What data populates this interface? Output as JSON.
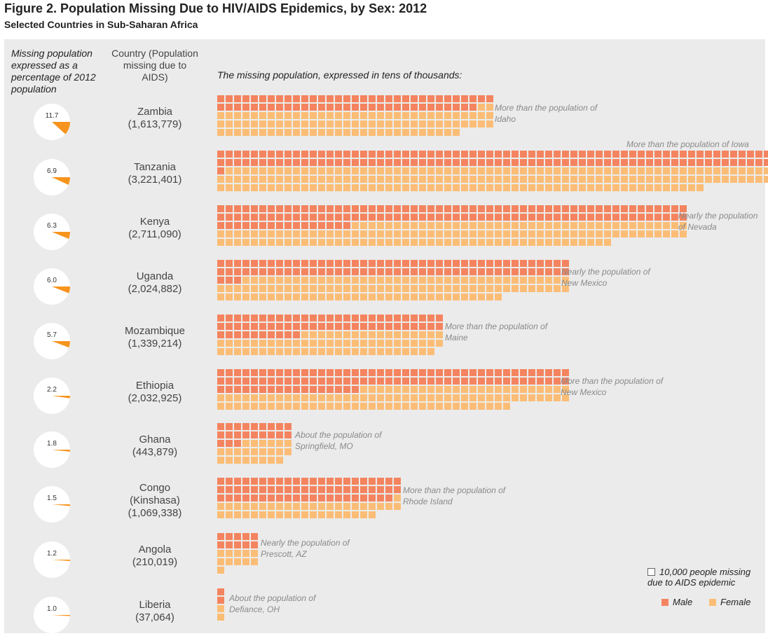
{
  "title": "Figure 2. Population Missing Due to HIV/AIDS Epidemics, by Sex: 2012",
  "subtitle": "Selected Countries in Sub-Saharan Africa",
  "headers": {
    "pct": "Missing population expressed as a percentage of 2012 population",
    "country": "Country (Population missing due to AIDS)",
    "waffle": "The missing population, expressed in tens of thousands:"
  },
  "legend": {
    "unit": "10,000 people missing due to AIDS epidemic",
    "male": "Male",
    "female": "Female"
  },
  "colors": {
    "male": "#f4845f",
    "female": "#fbbd76",
    "pie_bg": "#ffffff",
    "unit_box": "#ffffff"
  },
  "chart_data": {
    "type": "waffle",
    "unit": 10000,
    "series": [
      {
        "name": "Male"
      },
      {
        "name": "Female"
      }
    ],
    "countries": [
      {
        "name": "Zambia",
        "missing": "(1,613,779)",
        "pct": 11.7,
        "pct_label": "11.7",
        "male": 64,
        "female": 97,
        "cols": 33,
        "comparison": "More than the population of Idaho"
      },
      {
        "name": "Tanzania",
        "missing": "(3,221,401)",
        "pct": 6.9,
        "pct_label": "6.9",
        "male": 133,
        "female": 189,
        "cols": 66,
        "comparison": "More than the population of Iowa"
      },
      {
        "name": "Kenya",
        "missing": "(2,711,090)",
        "pct": 6.3,
        "pct_label": "6.3",
        "male": 128,
        "female": 143,
        "cols": 56,
        "comparison": "Nearly the population of Nevada"
      },
      {
        "name": "Uganda",
        "missing": "(2,024,882)",
        "pct": 6.0,
        "pct_label": "6.0",
        "male": 87,
        "female": 115,
        "cols": 42,
        "comparison": "Nearly the population of New Mexico"
      },
      {
        "name": "Mozambique",
        "missing": "(1,339,214)",
        "pct": 5.7,
        "pct_label": "5.7",
        "male": 64,
        "female": 70,
        "cols": 27,
        "comparison": "More than the population of Maine"
      },
      {
        "name": "Ethiopia",
        "missing": "(2,032,925)",
        "pct": 2.2,
        "pct_label": "2.2",
        "male": 101,
        "female": 102,
        "cols": 42,
        "comparison": "More than the population of New Mexico"
      },
      {
        "name": "Ghana",
        "missing": "(443,879)",
        "pct": 1.8,
        "pct_label": "1.8",
        "male": 21,
        "female": 23,
        "cols": 9,
        "comparison": "About the population of Springfield, MO"
      },
      {
        "name": "Congo (Kinshasa)",
        "name_lines": [
          "Congo",
          "(Kinshasa)"
        ],
        "missing": "(1,069,338)",
        "pct": 1.5,
        "pct_label": "1.5",
        "male": 65,
        "female": 42,
        "cols": 22,
        "comparison": "More than the population of Rhode Island"
      },
      {
        "name": "Angola",
        "missing": "(210,019)",
        "pct": 1.2,
        "pct_label": "1.2",
        "male": 10,
        "female": 11,
        "cols": 5,
        "comparison": "Nearly the population of Prescott, AZ"
      },
      {
        "name": "Liberia",
        "missing": "(37,064)",
        "pct": 1.0,
        "pct_label": "1.0",
        "male": 2,
        "female": 2,
        "cols": 1,
        "comparison": "About the population of Defiance, OH"
      }
    ]
  }
}
